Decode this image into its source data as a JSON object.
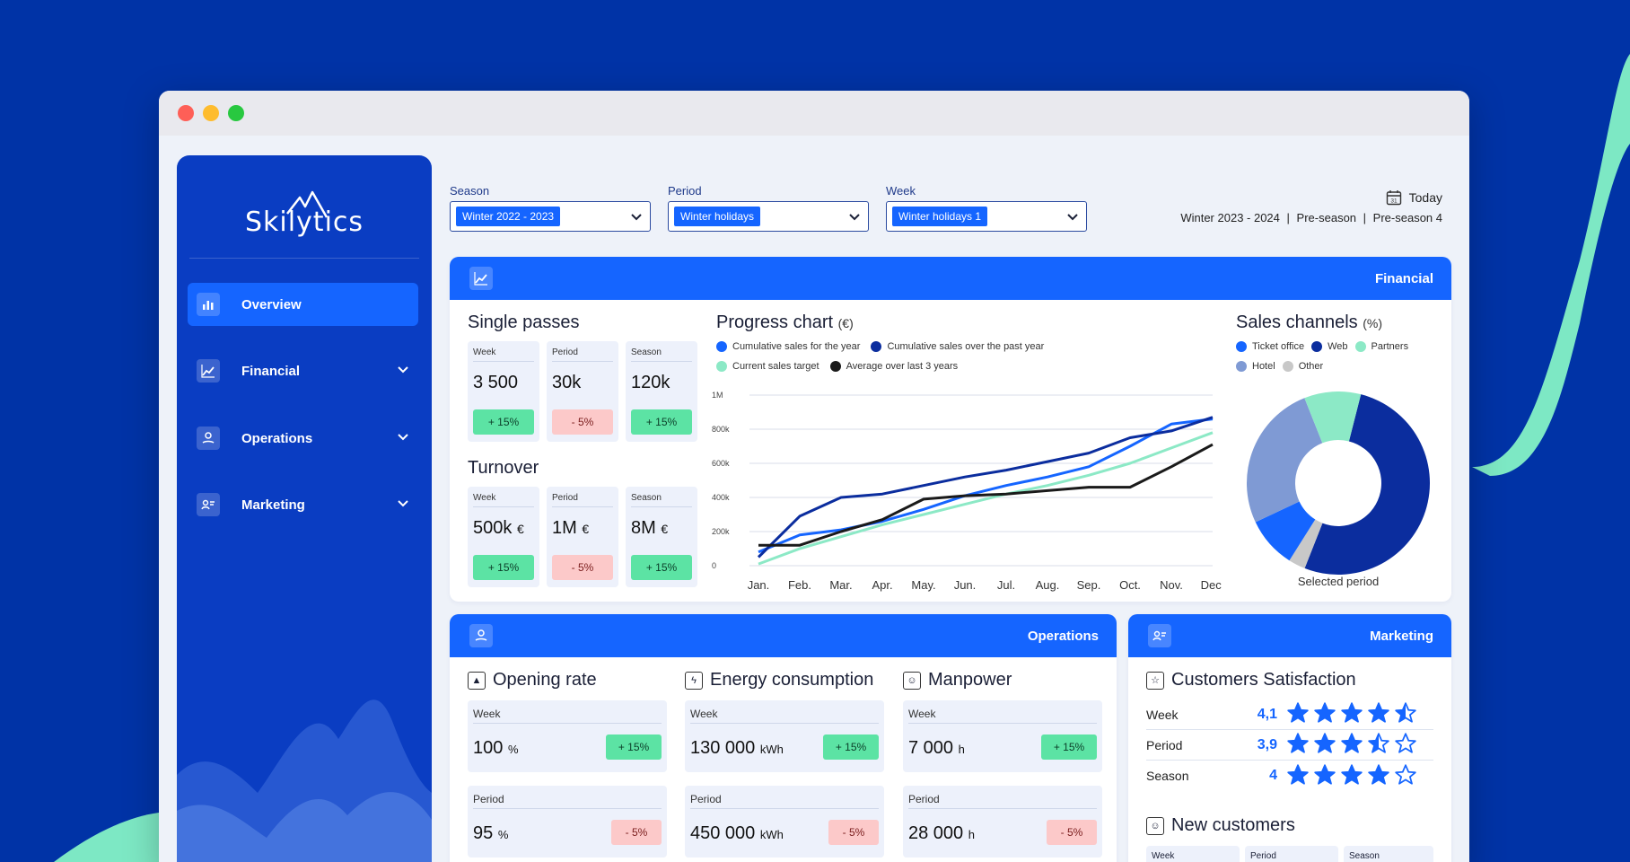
{
  "window": {
    "controls": [
      "close",
      "minimize",
      "maximize"
    ]
  },
  "sidebar": {
    "logo": "Skilytics",
    "items": [
      {
        "label": "Overview",
        "icon": "bar-chart-icon",
        "active": true
      },
      {
        "label": "Financial",
        "icon": "line-chart-icon",
        "active": false
      },
      {
        "label": "Operations",
        "icon": "location-hand-icon",
        "active": false
      },
      {
        "label": "Marketing",
        "icon": "person-card-icon",
        "active": false
      }
    ]
  },
  "filters": {
    "season": {
      "label": "Season",
      "value": "Winter 2022 - 2023"
    },
    "period": {
      "label": "Period",
      "value": "Winter holidays"
    },
    "week": {
      "label": "Week",
      "value": "Winter holidays 1"
    }
  },
  "today": {
    "label": "Today",
    "calendar_day": "31",
    "season": "Winter 2023 - 2024",
    "period": "Pre-season",
    "week": "Pre-season 4",
    "separator": "|"
  },
  "financial": {
    "title": "Financial",
    "single_passes": {
      "title": "Single passes",
      "cards": [
        {
          "label": "Week",
          "value": "3 500",
          "unit": "",
          "change": "+ 15%",
          "trend": "up"
        },
        {
          "label": "Period",
          "value": "30k",
          "unit": "",
          "change": "- 5%",
          "trend": "down"
        },
        {
          "label": "Season",
          "value": "120k",
          "unit": "",
          "change": "+ 15%",
          "trend": "up"
        }
      ]
    },
    "turnover": {
      "title": "Turnover",
      "cards": [
        {
          "label": "Week",
          "value": "500k",
          "unit": "€",
          "change": "+ 15%",
          "trend": "up"
        },
        {
          "label": "Period",
          "value": "1M",
          "unit": "€",
          "change": "- 5%",
          "trend": "down"
        },
        {
          "label": "Season",
          "value": "8M",
          "unit": "€",
          "change": "+ 15%",
          "trend": "up"
        }
      ]
    }
  },
  "chart_data": [
    {
      "type": "line",
      "title": "Progress chart",
      "unit": "(€)",
      "categories": [
        "Jan.",
        "Feb.",
        "Mar.",
        "Apr.",
        "May.",
        "Jun.",
        "Jul.",
        "Aug.",
        "Sep.",
        "Oct.",
        "Nov.",
        "Dec."
      ],
      "yticks": [
        "0",
        "200k",
        "400k",
        "600k",
        "800k",
        "1M"
      ],
      "ylim": [
        0,
        1000000
      ],
      "series": [
        {
          "name": "Cumulative sales for the year",
          "color": "#1565ff",
          "values": [
            80000,
            180000,
            210000,
            260000,
            330000,
            410000,
            470000,
            520000,
            580000,
            700000,
            830000,
            860000
          ]
        },
        {
          "name": "Cumulative sales over the past year",
          "color": "#0b2d9e",
          "values": [
            50000,
            290000,
            400000,
            420000,
            470000,
            520000,
            560000,
            610000,
            660000,
            750000,
            790000,
            870000
          ]
        },
        {
          "name": "Current sales target",
          "color": "#8ce9c6",
          "values": [
            10000,
            100000,
            170000,
            240000,
            300000,
            360000,
            420000,
            470000,
            530000,
            600000,
            690000,
            780000
          ]
        },
        {
          "name": "Average over last 3 years",
          "color": "#1a1a1a",
          "values": [
            120000,
            120000,
            200000,
            270000,
            390000,
            410000,
            420000,
            440000,
            460000,
            460000,
            580000,
            710000
          ]
        }
      ]
    },
    {
      "type": "pie",
      "title": "Sales channels",
      "unit": "(%)",
      "caption": "Selected period",
      "labels": [
        "Ticket office",
        "Web",
        "Partners",
        "Hotel",
        "Other"
      ],
      "colors": [
        "#1565ff",
        "#0b2d9e",
        "#8ce9c6",
        "#7f9ad4",
        "#c8c8c8"
      ],
      "values": [
        9,
        52,
        10,
        26,
        3
      ]
    }
  ],
  "operations": {
    "title": "Operations",
    "opening_rate": {
      "title": "Opening rate",
      "cards": [
        {
          "label": "Week",
          "value": "100",
          "unit": "%",
          "change": "+ 15%",
          "trend": "up"
        },
        {
          "label": "Period",
          "value": "95",
          "unit": "%",
          "change": "- 5%",
          "trend": "down"
        }
      ]
    },
    "energy": {
      "title": "Energy consumption",
      "cards": [
        {
          "label": "Week",
          "value": "130 000",
          "unit": "kWh",
          "change": "+ 15%",
          "trend": "up"
        },
        {
          "label": "Period",
          "value": "450 000",
          "unit": "kWh",
          "change": "- 5%",
          "trend": "down"
        }
      ]
    },
    "manpower": {
      "title": "Manpower",
      "cards": [
        {
          "label": "Week",
          "value": "7 000",
          "unit": "h",
          "change": "+ 15%",
          "trend": "up"
        },
        {
          "label": "Period",
          "value": "28 000",
          "unit": "h",
          "change": "- 5%",
          "trend": "down"
        }
      ]
    }
  },
  "marketing": {
    "title": "Marketing",
    "satisfaction": {
      "title": "Customers Satisfaction",
      "rows": [
        {
          "label": "Week",
          "score": "4,1",
          "stars": 4.5
        },
        {
          "label": "Period",
          "score": "3,9",
          "stars": 3.5
        },
        {
          "label": "Season",
          "score": "4",
          "stars": 4
        }
      ]
    },
    "new_customers": {
      "title": "New customers",
      "tabs": [
        "Week",
        "Period",
        "Season"
      ]
    }
  },
  "colors": {
    "primary": "#1565ff",
    "navy": "#0a3dc2",
    "background": "#0033a6",
    "mint": "#8ce9c6",
    "up": "#5ce3a4",
    "down": "#fcc9c9"
  }
}
